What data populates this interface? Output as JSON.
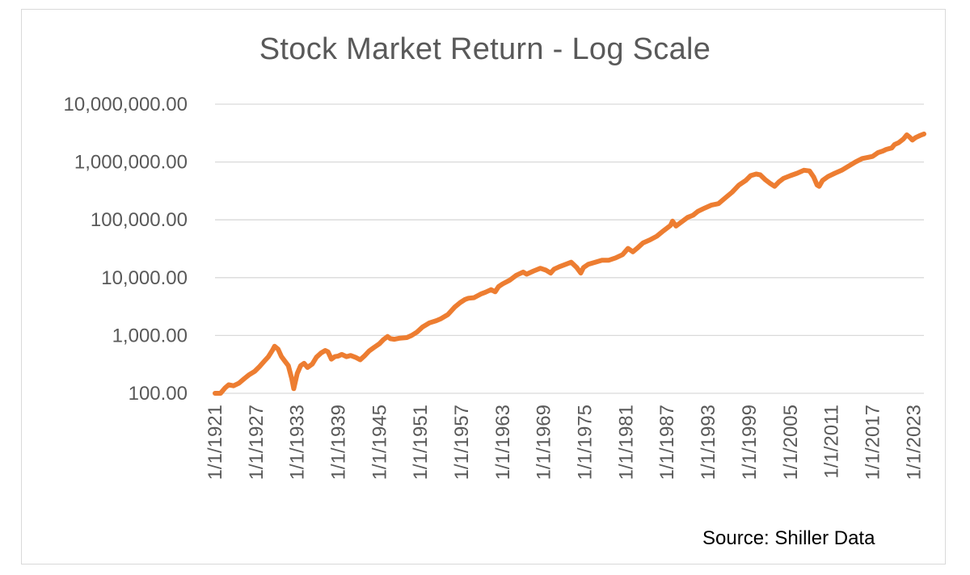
{
  "chart_data": {
    "type": "line",
    "title": "Stock Market Return - Log Scale",
    "source": "Source: Shiller Data",
    "y_scale": "log",
    "ylim": [
      100,
      10000000
    ],
    "xlim": [
      1921,
      2024.5
    ],
    "grid": true,
    "legend": "none",
    "y_tick_values": [
      100,
      1000,
      10000,
      100000,
      1000000,
      10000000
    ],
    "y_tick_labels": [
      "100.00",
      "1,000.00",
      "10,000.00",
      "100,000.00",
      "1,000,000.00",
      "10,000,000.00"
    ],
    "x_tick_values": [
      1921,
      1927,
      1933,
      1939,
      1945,
      1951,
      1957,
      1963,
      1969,
      1975,
      1981,
      1987,
      1993,
      1999,
      2005,
      2011,
      2017,
      2023
    ],
    "x_tick_labels": [
      "1/1/1921",
      "1/1/1927",
      "1/1/1933",
      "1/1/1939",
      "1/1/1945",
      "1/1/1951",
      "1/1/1957",
      "1/1/1963",
      "1/1/1969",
      "1/1/1975",
      "1/1/1981",
      "1/1/1987",
      "1/1/1993",
      "1/1/1999",
      "1/1/2005",
      "1/1/2011",
      "1/1/2017",
      "1/1/2023"
    ],
    "series": [
      {
        "color": "#ED7D31",
        "x": [
          1921,
          1921.8,
          1922.5,
          1923,
          1923.7,
          1924.5,
          1925.3,
          1926,
          1926.8,
          1927.5,
          1928.2,
          1928.8,
          1929.4,
          1929.7,
          1930.2,
          1930.7,
          1931.2,
          1931.7,
          1932.2,
          1932.5,
          1933,
          1933.5,
          1934,
          1934.5,
          1935.2,
          1935.8,
          1936.5,
          1937.1,
          1937.5,
          1938,
          1938.5,
          1939,
          1939.5,
          1940.2,
          1940.8,
          1941.5,
          1942.2,
          1942.8,
          1943.5,
          1944.2,
          1945,
          1945.6,
          1946.2,
          1946.6,
          1947.2,
          1948,
          1949,
          1949.7,
          1950.5,
          1951.3,
          1952.3,
          1953.3,
          1954,
          1955,
          1956,
          1956.8,
          1957.5,
          1958,
          1958.8,
          1959.8,
          1960.5,
          1961.3,
          1961.9,
          1962.4,
          1963,
          1964,
          1965,
          1966,
          1966.5,
          1967.5,
          1968.5,
          1969.3,
          1970,
          1970.5,
          1971.3,
          1972.2,
          1973,
          1973.8,
          1974.4,
          1974.8,
          1975.5,
          1976.5,
          1977.5,
          1978.5,
          1979.5,
          1980.5,
          1981.3,
          1982,
          1982.6,
          1983.5,
          1984.5,
          1985.5,
          1986.5,
          1987.5,
          1987.8,
          1988.3,
          1989,
          1990,
          1990.8,
          1991.5,
          1992.5,
          1993.5,
          1994.5,
          1995.5,
          1996.5,
          1997.5,
          1998.5,
          1999.2,
          2000,
          2000.6,
          2001.3,
          2002,
          2002.7,
          2003.3,
          2004,
          2005,
          2006,
          2007,
          2007.8,
          2008.4,
          2008.9,
          2009.2,
          2009.7,
          2010.5,
          2011.5,
          2012.5,
          2013.5,
          2014.5,
          2015.5,
          2016.3,
          2017,
          2017.8,
          2018.5,
          2019,
          2019.8,
          2020.2,
          2020.8,
          2021.5,
          2022,
          2022.4,
          2022.8,
          2023.3,
          2024,
          2024.5
        ],
        "y": [
          100,
          100,
          125,
          140,
          135,
          150,
          180,
          210,
          240,
          290,
          360,
          430,
          560,
          650,
          580,
          430,
          360,
          300,
          180,
          120,
          220,
          300,
          330,
          280,
          320,
          420,
          500,
          550,
          520,
          390,
          430,
          440,
          470,
          430,
          450,
          420,
          380,
          440,
          540,
          620,
          720,
          850,
          960,
          880,
          860,
          900,
          920,
          1000,
          1150,
          1400,
          1650,
          1800,
          1950,
          2300,
          3100,
          3700,
          4200,
          4400,
          4500,
          5200,
          5600,
          6200,
          5700,
          7000,
          7800,
          9000,
          11000,
          12500,
          11500,
          13000,
          14500,
          13500,
          12000,
          14000,
          15500,
          17000,
          18500,
          15000,
          12000,
          15000,
          17000,
          18500,
          20000,
          20000,
          22000,
          25000,
          32000,
          28000,
          32000,
          40000,
          45000,
          52000,
          65000,
          80000,
          95000,
          78000,
          90000,
          110000,
          120000,
          140000,
          160000,
          180000,
          190000,
          240000,
          300000,
          400000,
          480000,
          580000,
          620000,
          600000,
          500000,
          430000,
          380000,
          450000,
          520000,
          580000,
          640000,
          720000,
          700000,
          550000,
          400000,
          380000,
          480000,
          560000,
          640000,
          720000,
          850000,
          1000000,
          1150000,
          1200000,
          1250000,
          1450000,
          1550000,
          1650000,
          1750000,
          2000000,
          2150000,
          2500000,
          2950000,
          2700000,
          2400000,
          2650000,
          2900000,
          3050000
        ]
      }
    ]
  }
}
